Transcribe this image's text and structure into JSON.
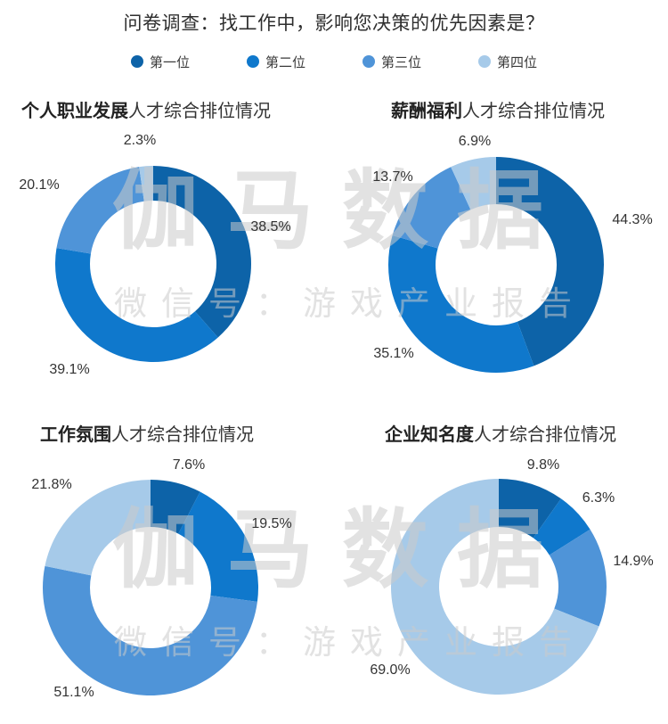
{
  "title": "问卷调查：找工作中，影响您决策的优先因素是？",
  "legend": {
    "items": [
      {
        "label": "第一位",
        "color": "#0d63a8"
      },
      {
        "label": "第二位",
        "color": "#0f78cc"
      },
      {
        "label": "第三位",
        "color": "#4f94d8"
      },
      {
        "label": "第四位",
        "color": "#a6cae9"
      }
    ]
  },
  "watermark": {
    "line1": "伽马数据",
    "line2": "微信号：游戏产业报告"
  },
  "chart_data": [
    {
      "type": "pie",
      "donut": true,
      "title": "个人职业发展人才综合排位情况",
      "title_bold": "个人职业发展",
      "title_rest": "人才综合排位情况",
      "categories": [
        "第一位",
        "第二位",
        "第三位",
        "第四位"
      ],
      "values": [
        38.5,
        39.1,
        20.1,
        2.3
      ],
      "labels": [
        "38.5%",
        "39.1%",
        "20.1%",
        "2.3%"
      ],
      "start_angle": 0,
      "direction": "clockwise",
      "legend_position": "top"
    },
    {
      "type": "pie",
      "donut": true,
      "title": "薪酬福利人才综合排位情况",
      "title_bold": "薪酬福利",
      "title_rest": "人才综合排位情况",
      "categories": [
        "第一位",
        "第二位",
        "第三位",
        "第四位"
      ],
      "values": [
        44.3,
        35.1,
        13.7,
        6.9
      ],
      "labels": [
        "44.3%",
        "35.1%",
        "13.7%",
        "6.9%"
      ],
      "start_angle": 0,
      "direction": "clockwise",
      "legend_position": "top"
    },
    {
      "type": "pie",
      "donut": true,
      "title": "工作氛围人才综合排位情况",
      "title_bold": "工作氛围",
      "title_rest": "人才综合排位情况",
      "categories": [
        "第一位",
        "第二位",
        "第三位",
        "第四位"
      ],
      "values": [
        7.6,
        19.5,
        51.1,
        21.8
      ],
      "labels": [
        "7.6%",
        "19.5%",
        "51.1%",
        "21.8%"
      ],
      "start_angle": 0,
      "direction": "clockwise",
      "legend_position": "top"
    },
    {
      "type": "pie",
      "donut": true,
      "title": "企业知名度人才综合排位情况",
      "title_bold": "企业知名度",
      "title_rest": "人才综合排位情况",
      "categories": [
        "第一位",
        "第二位",
        "第三位",
        "第四位"
      ],
      "values": [
        9.8,
        6.3,
        14.9,
        69.0
      ],
      "labels": [
        "9.8%",
        "6.3%",
        "14.9%",
        "69.0%"
      ],
      "start_angle": 0,
      "direction": "clockwise",
      "legend_position": "top"
    }
  ]
}
